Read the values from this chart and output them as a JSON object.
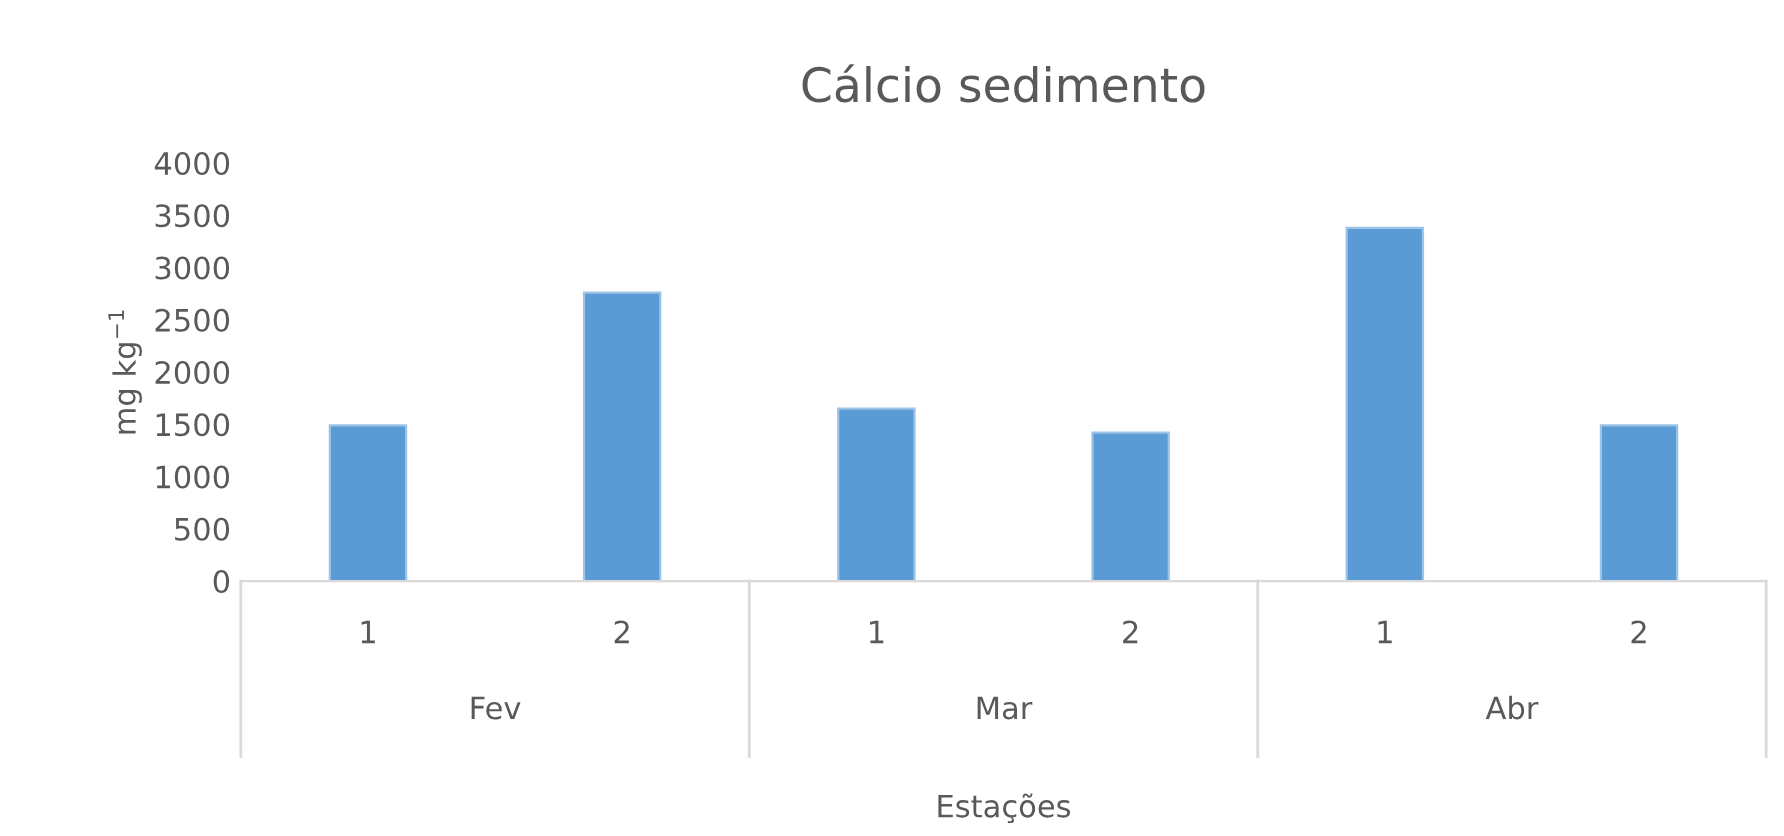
{
  "chart_data": {
    "type": "bar",
    "title": "Cálcio sedimento",
    "xlabel": "Estações",
    "ylabel": "mg kg$^{−1}$",
    "categories": [
      "1",
      "2",
      "1",
      "2",
      "1",
      "2"
    ],
    "annotations": [
      "Fev",
      "Mar",
      "Abr"
    ],
    "series": [
      {
        "color": "#5b9bd5",
        "values": [
          1490,
          2760,
          1650,
          1420,
          3380,
          1490
        ]
      }
    ],
    "ylim": [
      0,
      4000
    ],
    "yticks": [
      0,
      500,
      1000,
      1500,
      2000,
      2500,
      3000,
      3500,
      4000
    ],
    "grid": false,
    "legend": false
  }
}
